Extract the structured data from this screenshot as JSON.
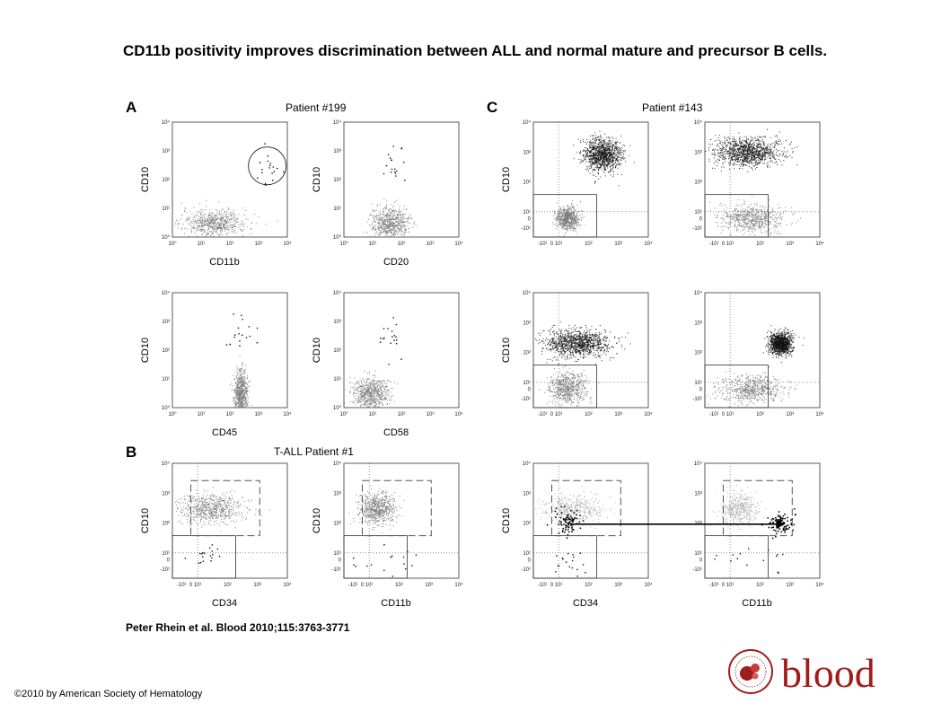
{
  "title": "CD11b positivity improves discrimination between ALL and normal mature and precursor B cells.",
  "panels": {
    "A": {
      "letter": "A",
      "header": "Patient #199"
    },
    "B": {
      "letter": "B",
      "header": "T-ALL Patient #1"
    },
    "C": {
      "letter": "C",
      "header": "Patient #143"
    }
  },
  "citation": "Peter Rhein et al. Blood 2010;115:3763-3771",
  "copyright": "©2010 by American Society of Hematology",
  "logo": {
    "text": "blood",
    "color": "#a01c1c"
  },
  "tick_labels": {
    "log": [
      "10⁰",
      "10¹",
      "10²",
      "10³",
      "10⁴"
    ],
    "biexp_y": [
      "10⁴",
      "10³",
      "10²",
      "10¹",
      "0",
      "-10¹"
    ],
    "biexp_x": [
      "-10¹",
      "0",
      "10¹",
      "10²",
      "10³",
      "10⁴"
    ]
  },
  "chart_data": [
    {
      "type": "scatter",
      "panel": "A",
      "row": 1,
      "col": 1,
      "xlabel": "CD11b",
      "ylabel": "CD10",
      "scale": "log",
      "xlim": [
        1,
        10000
      ],
      "ylim": [
        1,
        10000
      ],
      "annotation": "circle gate around CD11b+ CD10+ events",
      "populations": [
        {
          "x": 30,
          "y": 3,
          "spread": "wide",
          "density": "main"
        },
        {
          "x": 2000,
          "y": 300,
          "spread": "small",
          "density": "sparse"
        }
      ]
    },
    {
      "type": "scatter",
      "panel": "A",
      "row": 1,
      "col": 2,
      "xlabel": "CD20",
      "ylabel": "CD10",
      "scale": "log",
      "xlim": [
        1,
        10000
      ],
      "ylim": [
        1,
        10000
      ],
      "populations": [
        {
          "x": 40,
          "y": 3,
          "spread": "medium",
          "density": "main"
        },
        {
          "x": 60,
          "y": 300,
          "spread": "small",
          "density": "sparse"
        }
      ]
    },
    {
      "type": "scatter",
      "panel": "A",
      "row": 2,
      "col": 1,
      "xlabel": "CD45",
      "ylabel": "CD10",
      "scale": "log",
      "xlim": [
        1,
        10000
      ],
      "ylim": [
        1,
        10000
      ],
      "populations": [
        {
          "x": 250,
          "y": 3,
          "spread": "narrow",
          "density": "main"
        },
        {
          "x": 200,
          "y": 300,
          "spread": "small",
          "density": "sparse"
        }
      ]
    },
    {
      "type": "scatter",
      "panel": "A",
      "row": 2,
      "col": 2,
      "xlabel": "CD58",
      "ylabel": "CD10",
      "scale": "log",
      "xlim": [
        1,
        10000
      ],
      "ylim": [
        1,
        10000
      ],
      "populations": [
        {
          "x": 8,
          "y": 3,
          "spread": "medium",
          "density": "main"
        },
        {
          "x": 40,
          "y": 300,
          "spread": "small",
          "density": "sparse"
        }
      ]
    },
    {
      "type": "scatter",
      "panel": "C",
      "row": 1,
      "col": 1,
      "xlabel": "",
      "ylabel": "CD10",
      "scale": "biexponential",
      "gate": "rectangle around CD10-negative events",
      "populations": [
        {
          "x": 300,
          "y": 800,
          "spread": "medium",
          "density": "dense"
        },
        {
          "x": 20,
          "y": 0,
          "spread": "small",
          "density": "main"
        }
      ]
    },
    {
      "type": "scatter",
      "panel": "C",
      "row": 1,
      "col": 2,
      "xlabel": "",
      "ylabel": "",
      "scale": "biexponential",
      "gate": "rectangle around CD10-negative events",
      "populations": [
        {
          "x": 40,
          "y": 1000,
          "spread": "wide",
          "density": "dense"
        },
        {
          "x": 50,
          "y": 0,
          "spread": "wide",
          "density": "main"
        }
      ]
    },
    {
      "type": "scatter",
      "panel": "C",
      "row": 2,
      "col": 1,
      "xlabel": "",
      "ylabel": "CD10",
      "scale": "biexponential",
      "gate": "rectangle around CD10-negative events",
      "populations": [
        {
          "x": 40,
          "y": 200,
          "spread": "wide",
          "density": "dense"
        },
        {
          "x": 20,
          "y": 0,
          "spread": "medium",
          "density": "main"
        }
      ]
    },
    {
      "type": "scatter",
      "panel": "C",
      "row": 2,
      "col": 2,
      "xlabel": "",
      "ylabel": "",
      "scale": "biexponential",
      "gate": "rectangle around CD10-negative events",
      "populations": [
        {
          "x": 500,
          "y": 200,
          "spread": "small",
          "density": "dense"
        },
        {
          "x": 50,
          "y": 0,
          "spread": "wide",
          "density": "main"
        }
      ]
    },
    {
      "type": "scatter",
      "panel": "B",
      "row": 3,
      "col": 1,
      "xlabel": "CD34",
      "ylabel": "CD10",
      "scale": "biexponential",
      "gate": "dashed rectangle around CD10+ events and solid rectangle around CD10- events",
      "populations": [
        {
          "x": 30,
          "y": 300,
          "spread": "wide",
          "density": "main"
        },
        {
          "x": 20,
          "y": 0,
          "spread": "small",
          "density": "sparse"
        }
      ]
    },
    {
      "type": "scatter",
      "panel": "B",
      "row": 3,
      "col": 2,
      "xlabel": "CD11b",
      "ylabel": "CD10",
      "scale": "biexponential",
      "gate": "dashed rectangle around CD10+ events and solid rectangle around CD10- events",
      "populations": [
        {
          "x": 20,
          "y": 300,
          "spread": "medium",
          "density": "main"
        },
        {
          "x": 50,
          "y": 0,
          "spread": "wide",
          "density": "sparse"
        }
      ]
    },
    {
      "type": "scatter",
      "panel": "C",
      "row": 3,
      "col": 1,
      "xlabel": "CD34",
      "ylabel": "CD10",
      "scale": "biexponential",
      "gate": "dashed rectangle around CD10+ events and solid rectangle around CD10- events",
      "populations": [
        {
          "x": 30,
          "y": 300,
          "spread": "wide",
          "density": "light"
        },
        {
          "x": 20,
          "y": 100,
          "spread": "small",
          "density": "highlight"
        },
        {
          "x": 20,
          "y": 0,
          "spread": "small",
          "density": "sparse"
        }
      ]
    },
    {
      "type": "scatter",
      "panel": "C",
      "row": 3,
      "col": 2,
      "xlabel": "CD11b",
      "ylabel": "",
      "scale": "biexponential",
      "gate": "dashed rectangle around CD10+ events and solid rectangle around CD10- events",
      "populations": [
        {
          "x": 20,
          "y": 300,
          "spread": "medium",
          "density": "light"
        },
        {
          "x": 500,
          "y": 100,
          "spread": "small",
          "density": "highlight"
        },
        {
          "x": 50,
          "y": 0,
          "spread": "wide",
          "density": "sparse"
        }
      ]
    }
  ]
}
